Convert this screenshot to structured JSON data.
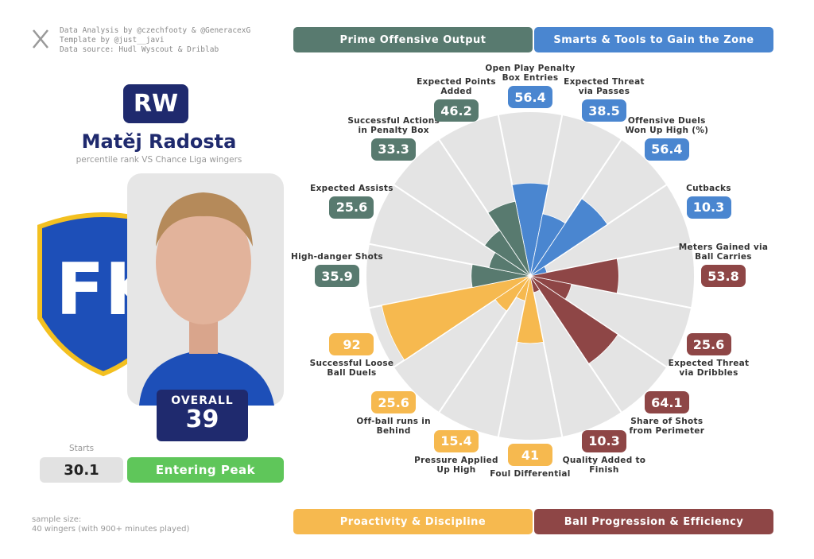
{
  "credits": [
    "Data Analysis by @czechfooty & @GeneracexG",
    "Template by @just__javi",
    "Data source: Hudl Wyscout & Driblab"
  ],
  "player": {
    "position": "RW",
    "name": "Matěj Radosta",
    "subtitle": "percentile rank VS Chance Liga wingers",
    "overall_label": "OVERALL",
    "overall": 39,
    "starts_label": "Starts",
    "starts": 30.1,
    "stage": "Entering Peak"
  },
  "sample": [
    "sample size:",
    "40 wingers (with 900+ minutes played)"
  ],
  "chart_data": {
    "type": "polar",
    "rlim": [
      0,
      100
    ],
    "series": [
      {
        "name": "Smarts & Tools to Gain the Zone",
        "color": "#4a86d0",
        "categories": [
          "Open Play Penalty Box Entries",
          "Expected Threat via Passes",
          "Offensive Duels Won Up High (%)",
          "Cutbacks"
        ],
        "values": [
          56.4,
          38.5,
          56.4,
          10.3
        ]
      },
      {
        "name": "Ball Progression & Efficiency",
        "color": "#8e4646",
        "categories": [
          "Meters Gained via Ball Carries",
          "Expected Threat via Dribbles",
          "Share of Shots from Perimeter",
          "Quality Added to Finish"
        ],
        "values": [
          53.8,
          25.6,
          64.1,
          10.3
        ]
      },
      {
        "name": "Proactivity & Discipline",
        "color": "#f6b94f",
        "categories": [
          "Foul Differential",
          "Pressure Applied Up High",
          "Off-ball runs in Behind",
          "Successful Loose Ball Duels"
        ],
        "values": [
          41,
          15.4,
          25.6,
          92
        ]
      },
      {
        "name": "Prime Offensive Output",
        "color": "#587a6f",
        "categories": [
          "High-danger Shots",
          "Expected Assists",
          "Successful Actions in Penalty Box",
          "Expected Points Added"
        ],
        "values": [
          35.9,
          25.6,
          33.3,
          46.2
        ]
      }
    ]
  }
}
